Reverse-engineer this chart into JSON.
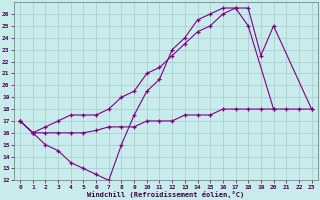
{
  "xlabel": "Windchill (Refroidissement éolien,°C)",
  "bg_color": "#c8ecec",
  "line_color": "#800080",
  "grid_color": "#a8cccc",
  "xlim": [
    -0.5,
    23.5
  ],
  "ylim": [
    12,
    27
  ],
  "xticks": [
    0,
    1,
    2,
    3,
    4,
    5,
    6,
    7,
    8,
    9,
    10,
    11,
    12,
    13,
    14,
    15,
    16,
    17,
    18,
    19,
    20,
    21,
    22,
    23
  ],
  "yticks": [
    12,
    13,
    14,
    15,
    16,
    17,
    18,
    19,
    20,
    21,
    22,
    23,
    24,
    25,
    26
  ],
  "c1_x": [
    0,
    1,
    2,
    3,
    4,
    5,
    6,
    7,
    8,
    9,
    10,
    11,
    12,
    13,
    14,
    15,
    16,
    17,
    18,
    20
  ],
  "c1_y": [
    17.0,
    16.0,
    15.0,
    14.5,
    13.5,
    13.0,
    12.5,
    12.0,
    15.0,
    17.5,
    19.5,
    20.5,
    23.0,
    24.0,
    25.5,
    26.0,
    26.5,
    26.5,
    25.0,
    18.0
  ],
  "c2_x": [
    0,
    1,
    2,
    3,
    4,
    5,
    6,
    7,
    8,
    9,
    10,
    11,
    12,
    13,
    14,
    15,
    16,
    17,
    18,
    19,
    20,
    23
  ],
  "c2_y": [
    17.0,
    16.0,
    16.5,
    17.0,
    17.5,
    17.5,
    17.5,
    18.0,
    19.0,
    19.5,
    21.0,
    21.5,
    22.5,
    23.5,
    24.5,
    25.0,
    26.0,
    26.5,
    26.5,
    22.5,
    25.0,
    18.0
  ],
  "c3_x": [
    0,
    1,
    2,
    3,
    4,
    5,
    6,
    7,
    8,
    9,
    10,
    11,
    12,
    13,
    14,
    15,
    16,
    17,
    18,
    19,
    20,
    21,
    22,
    23
  ],
  "c3_y": [
    17.0,
    16.0,
    16.0,
    16.0,
    16.0,
    16.0,
    16.2,
    16.5,
    16.5,
    16.5,
    17.0,
    17.0,
    17.0,
    17.5,
    17.5,
    17.5,
    18.0,
    18.0,
    18.0,
    18.0,
    18.0,
    18.0,
    18.0,
    18.0
  ]
}
